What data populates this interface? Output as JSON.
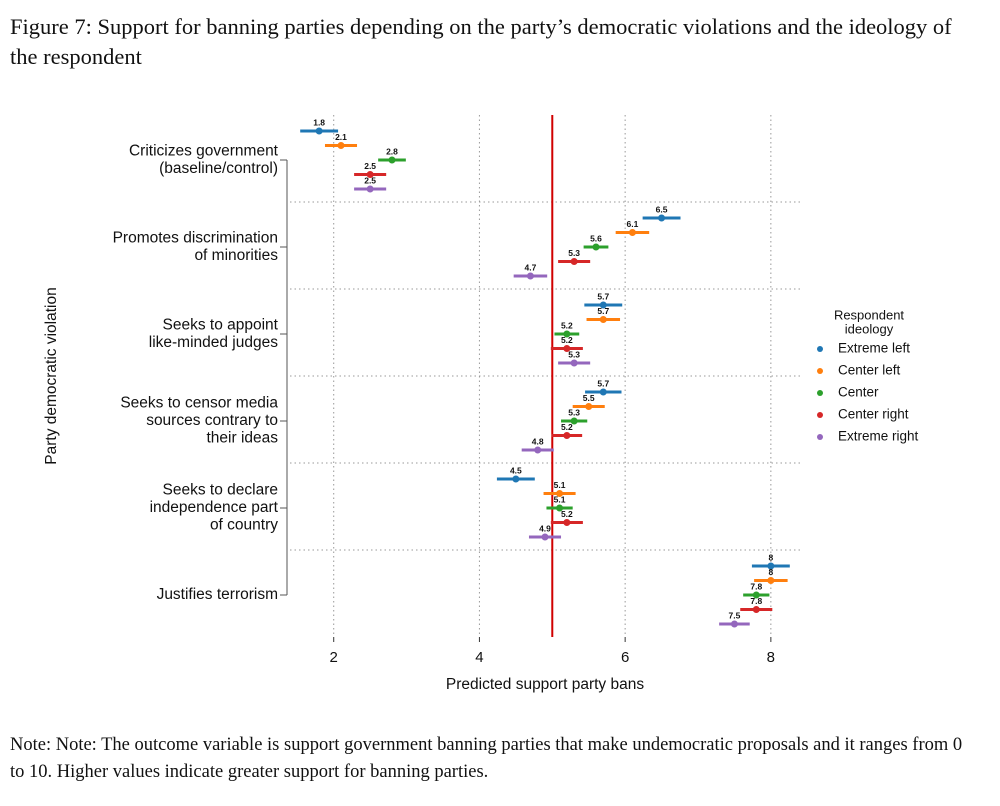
{
  "chart_data": {
    "type": "dot_errorbar",
    "title": "Figure 7: Support for banning parties depending on the party’s democratic violations and the ideology of the respondent",
    "note": "Note: Note: The outcome variable is support government banning parties that make undemocratic proposals and it ranges from 0 to 10. Higher values indicate greater support for banning parties.",
    "x_label": "Predicted support party bans",
    "y_label": "Party democratic violation",
    "categories": [
      [
        "Criticizes government",
        "(baseline/control)"
      ],
      [
        "Promotes discrimination",
        "of minorities"
      ],
      [
        "Seeks to appoint",
        "like-minded judges"
      ],
      [
        "Seeks to censor media",
        "sources contrary to",
        "their ideas"
      ],
      [
        "Seeks to declare",
        "independence part",
        "of country"
      ],
      [
        "Justifies terrorism"
      ]
    ],
    "legend_title": [
      "Respondent",
      "ideology"
    ],
    "series": [
      {
        "name": "Extreme left",
        "color": "#1f77b4",
        "values": [
          1.8,
          6.5,
          5.7,
          5.7,
          4.5,
          8
        ],
        "errors": [
          0.26,
          0.26,
          0.26,
          0.25,
          0.26,
          0.26
        ]
      },
      {
        "name": "Center left",
        "color": "#ff7f0e",
        "values": [
          2.1,
          6.1,
          5.7,
          5.5,
          5.1,
          8
        ],
        "errors": [
          0.22,
          0.23,
          0.23,
          0.22,
          0.22,
          0.23
        ]
      },
      {
        "name": "Center",
        "color": "#2ca02c",
        "values": [
          2.8,
          5.6,
          5.2,
          5.3,
          5.1,
          7.8
        ],
        "errors": [
          0.19,
          0.17,
          0.17,
          0.18,
          0.18,
          0.18
        ]
      },
      {
        "name": "Center right",
        "color": "#d62728",
        "values": [
          2.5,
          5.3,
          5.2,
          5.2,
          5.2,
          7.8
        ],
        "errors": [
          0.22,
          0.22,
          0.22,
          0.21,
          0.22,
          0.22
        ]
      },
      {
        "name": "Extreme right",
        "color": "#9467bd",
        "values": [
          2.5,
          4.7,
          5.3,
          4.8,
          4.9,
          7.5
        ],
        "errors": [
          0.22,
          0.23,
          0.22,
          0.22,
          0.22,
          0.21
        ]
      }
    ],
    "xlim": [
      1.4,
      8.4
    ],
    "xticks": [
      2,
      4,
      6,
      8
    ],
    "reference_line": {
      "value": 5,
      "color": "#d00000"
    },
    "grid": true
  }
}
